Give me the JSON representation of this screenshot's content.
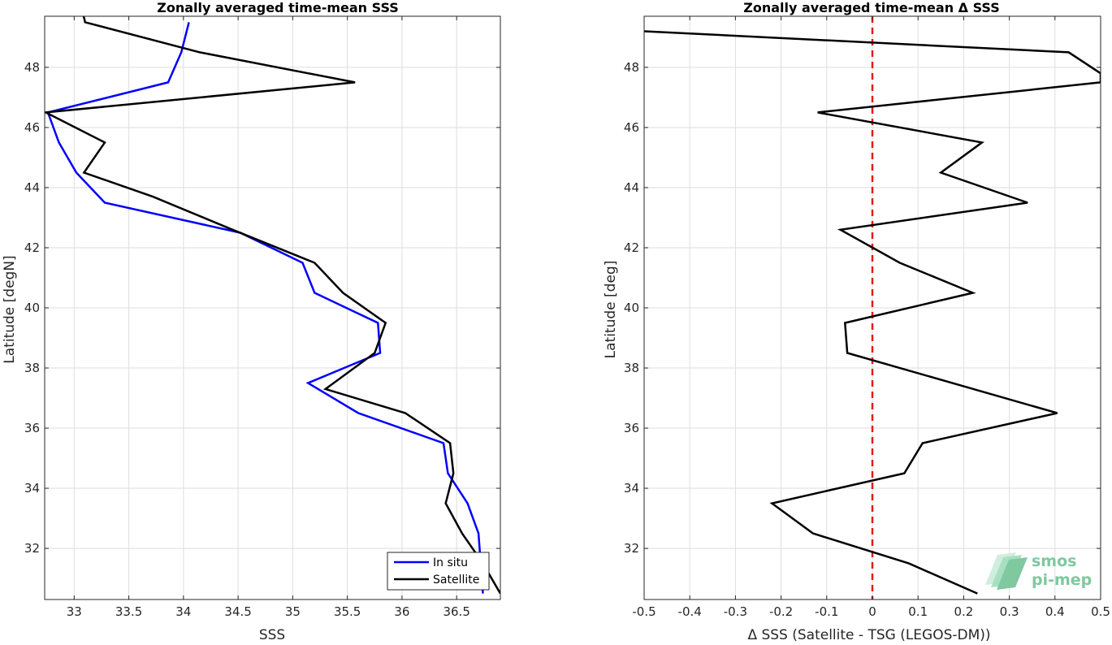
{
  "chart_data": [
    {
      "type": "line",
      "title": "Zonally averaged time-mean SSS",
      "xlabel": "SSS",
      "ylabel": "Latitude [degN]",
      "xlim": [
        32.73,
        36.9
      ],
      "ylim": [
        30.3,
        49.7
      ],
      "xticks": [
        "33",
        "33.5",
        "34",
        "34.5",
        "35",
        "35.5",
        "36",
        "36.5"
      ],
      "yticks": [
        "32",
        "34",
        "36",
        "38",
        "40",
        "42",
        "44",
        "46",
        "48"
      ],
      "grid": true,
      "legend": "bottom-right",
      "series": [
        {
          "name": "In situ",
          "color": "#0000ff",
          "points": [
            {
              "x": 34.05,
              "y": 49.5
            },
            {
              "x": 33.98,
              "y": 48.5
            },
            {
              "x": 33.86,
              "y": 47.5
            },
            {
              "x": 32.76,
              "y": 46.5
            },
            {
              "x": 32.86,
              "y": 45.5
            },
            {
              "x": 33.02,
              "y": 44.5
            },
            {
              "x": 33.28,
              "y": 43.5
            },
            {
              "x": 34.52,
              "y": 42.5
            },
            {
              "x": 35.09,
              "y": 41.5
            },
            {
              "x": 35.2,
              "y": 40.5
            },
            {
              "x": 35.78,
              "y": 39.5
            },
            {
              "x": 35.8,
              "y": 38.5
            },
            {
              "x": 35.14,
              "y": 37.5
            },
            {
              "x": 35.6,
              "y": 36.5
            },
            {
              "x": 36.38,
              "y": 35.5
            },
            {
              "x": 36.42,
              "y": 34.5
            },
            {
              "x": 36.6,
              "y": 33.5
            },
            {
              "x": 36.7,
              "y": 32.5
            },
            {
              "x": 36.72,
              "y": 31.5
            },
            {
              "x": 36.74,
              "y": 30.5
            }
          ]
        },
        {
          "name": "Satellite",
          "color": "#000000",
          "points": [
            {
              "x": 33.08,
              "y": 49.8
            },
            {
              "x": 33.1,
              "y": 49.5
            },
            {
              "x": 34.15,
              "y": 48.5
            },
            {
              "x": 35.57,
              "y": 47.5
            },
            {
              "x": 32.74,
              "y": 46.5
            },
            {
              "x": 33.28,
              "y": 45.5
            },
            {
              "x": 33.09,
              "y": 44.5
            },
            {
              "x": 33.72,
              "y": 43.7
            },
            {
              "x": 34.45,
              "y": 42.6
            },
            {
              "x": 35.2,
              "y": 41.5
            },
            {
              "x": 35.46,
              "y": 40.5
            },
            {
              "x": 35.85,
              "y": 39.5
            },
            {
              "x": 35.75,
              "y": 38.5
            },
            {
              "x": 35.3,
              "y": 37.3
            },
            {
              "x": 36.03,
              "y": 36.5
            },
            {
              "x": 36.44,
              "y": 35.5
            },
            {
              "x": 36.47,
              "y": 34.5
            },
            {
              "x": 36.4,
              "y": 33.5
            },
            {
              "x": 36.55,
              "y": 32.5
            },
            {
              "x": 36.74,
              "y": 31.5
            },
            {
              "x": 36.9,
              "y": 30.5
            }
          ]
        }
      ]
    },
    {
      "type": "line",
      "title": "Zonally averaged time-mean Δ SSS",
      "xlabel": "Δ SSS (Satellite - TSG (LEGOS-DM))",
      "ylabel": "Latitude [deg]",
      "xlim": [
        -0.5,
        0.5
      ],
      "ylim": [
        30.3,
        49.7
      ],
      "xticks": [
        "-0.5",
        "-0.4",
        "-0.3",
        "-0.2",
        "-0.1",
        "0",
        "0.1",
        "0.2",
        "0.3",
        "0.4",
        "0.5"
      ],
      "yticks": [
        "32",
        "34",
        "36",
        "38",
        "40",
        "42",
        "44",
        "46",
        "48"
      ],
      "grid": true,
      "reference_line": {
        "x": 0,
        "color": "#e41a1c",
        "style": "dashed"
      },
      "series": [
        {
          "color": "#000000",
          "points": [
            {
              "x": -0.5,
              "y": 49.2
            },
            {
              "x": 0.43,
              "y": 48.5
            },
            {
              "x": 0.5,
              "y": 47.8
            },
            {
              "x": 0.5,
              "y": 47.5
            },
            {
              "x": -0.12,
              "y": 46.5
            },
            {
              "x": 0.24,
              "y": 45.5
            },
            {
              "x": 0.15,
              "y": 44.5
            },
            {
              "x": 0.34,
              "y": 43.5
            },
            {
              "x": -0.07,
              "y": 42.6
            },
            {
              "x": 0.06,
              "y": 41.5
            },
            {
              "x": 0.22,
              "y": 40.5
            },
            {
              "x": -0.06,
              "y": 39.5
            },
            {
              "x": -0.055,
              "y": 38.5
            },
            {
              "x": 0.405,
              "y": 36.5
            },
            {
              "x": 0.11,
              "y": 35.5
            },
            {
              "x": 0.07,
              "y": 34.5
            },
            {
              "x": -0.22,
              "y": 33.5
            },
            {
              "x": -0.13,
              "y": 32.5
            },
            {
              "x": 0.08,
              "y": 31.5
            },
            {
              "x": 0.23,
              "y": 30.5
            }
          ]
        }
      ]
    }
  ],
  "logo": {
    "line1": "smos",
    "line2": "pi-mep",
    "color": "#7fc8a0"
  }
}
